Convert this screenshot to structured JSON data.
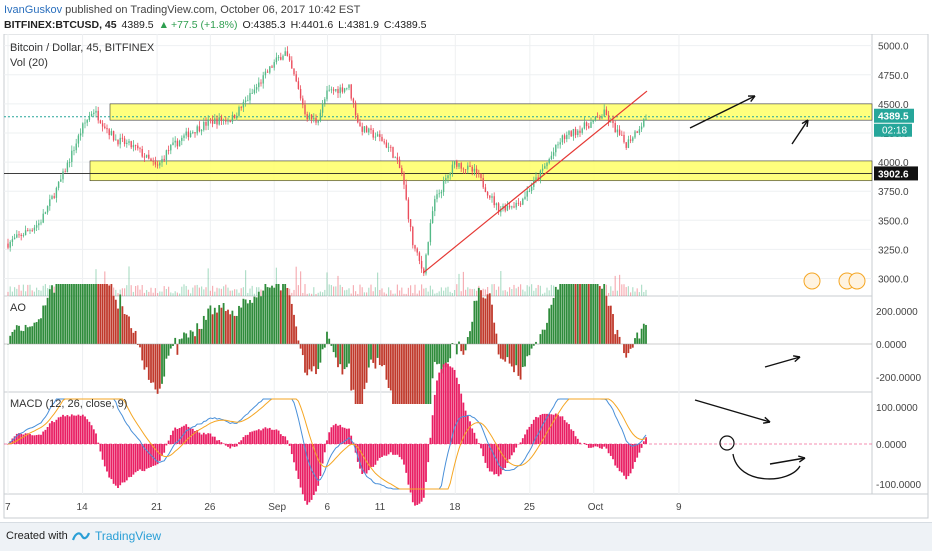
{
  "header": {
    "author": "IvanGuskov",
    "published_text": "published on TradingView.com, October 06, 2017 10:42 EST",
    "symbol": "BITFINEX:BTCUSD, 45",
    "last": "4389.5",
    "change": "+77.5 (+1.8%)",
    "open": "O:4385.3",
    "high": "H:4401.6",
    "low": "L:4381.9",
    "close": "C:4389.5"
  },
  "panels": {
    "main": {
      "title": "Bitcoin / Dollar, 45, BITFINEX",
      "vol": "Vol (20)"
    },
    "ao": {
      "title": "AO"
    },
    "macd": {
      "title": "MACD (12, 26, close, 9)"
    }
  },
  "price_scale": {
    "ticks": [
      "5000.0",
      "4750.0",
      "4500.0",
      "4250.0",
      "4000.0",
      "3750.0",
      "3500.0",
      "3250.0",
      "3000.0"
    ],
    "last_price": "4389.5",
    "countdown": "02:18",
    "crosshair_price": "3902.6"
  },
  "ao_scale": {
    "ticks": [
      "200.0000",
      "0.0000",
      "-200.0000"
    ]
  },
  "macd_scale": {
    "ticks": [
      "100.0000",
      "0.0000",
      "-100.0000"
    ]
  },
  "time_axis": {
    "labels": [
      "7",
      "14",
      "21",
      "26",
      "Sep",
      "6",
      "11",
      "18",
      "25",
      "Oct",
      "9"
    ]
  },
  "footer": {
    "created_with": "Created with",
    "brand": "TradingView"
  },
  "colors": {
    "up": "#53b987",
    "down": "#eb4d5c",
    "ao_up": "#2e8b3a",
    "ao_down": "#c0392b",
    "zone": "#ffff66",
    "trendline": "#e53935",
    "macd_line": "#4a90d9",
    "signal_line": "#f5a623",
    "hist": "#e91e63",
    "last_price_bg": "#26a69a"
  },
  "chart_data": {
    "type": "candlestick",
    "title": "Bitcoin / Dollar, 45, BITFINEX",
    "price_range": [
      2850,
      5100
    ],
    "last_price": 4389.5,
    "support_resistance_zones": [
      {
        "low": 4360,
        "high": 4500
      },
      {
        "low": 3840,
        "high": 4010
      }
    ],
    "trendline_points": [
      {
        "date": "Sep 15",
        "price": 3050
      },
      {
        "date": "Oct 6",
        "price": 4610
      }
    ],
    "price_path": [
      {
        "date": "Aug 7",
        "price": 3300
      },
      {
        "date": "Aug 10",
        "price": 3480
      },
      {
        "date": "Aug 12",
        "price": 3850
      },
      {
        "date": "Aug 14",
        "price": 4300
      },
      {
        "date": "Aug 15",
        "price": 4450
      },
      {
        "date": "Aug 17",
        "price": 4200
      },
      {
        "date": "Aug 19",
        "price": 4120
      },
      {
        "date": "Aug 21",
        "price": 3950
      },
      {
        "date": "Aug 22",
        "price": 4100
      },
      {
        "date": "Aug 24",
        "price": 4250
      },
      {
        "date": "Aug 26",
        "price": 4350
      },
      {
        "date": "Aug 28",
        "price": 4370
      },
      {
        "date": "Aug 30",
        "price": 4600
      },
      {
        "date": "Sep 1",
        "price": 4850
      },
      {
        "date": "Sep 2",
        "price": 4950
      },
      {
        "date": "Sep 3",
        "price": 4700
      },
      {
        "date": "Sep 4",
        "price": 4400
      },
      {
        "date": "Sep 5",
        "price": 4350
      },
      {
        "date": "Sep 6",
        "price": 4600
      },
      {
        "date": "Sep 8",
        "price": 4650
      },
      {
        "date": "Sep 9",
        "price": 4300
      },
      {
        "date": "Sep 11",
        "price": 4200
      },
      {
        "date": "Sep 12",
        "price": 4100
      },
      {
        "date": "Sep 13",
        "price": 3900
      },
      {
        "date": "Sep 14",
        "price": 3300
      },
      {
        "date": "Sep 15",
        "price": 3050
      },
      {
        "date": "Sep 16",
        "price": 3650
      },
      {
        "date": "Sep 18",
        "price": 4000
      },
      {
        "date": "Sep 20",
        "price": 3900
      },
      {
        "date": "Sep 22",
        "price": 3600
      },
      {
        "date": "Sep 24",
        "price": 3650
      },
      {
        "date": "Sep 26",
        "price": 3900
      },
      {
        "date": "Sep 28",
        "price": 4200
      },
      {
        "date": "Oct 1",
        "price": 4350
      },
      {
        "date": "Oct 2",
        "price": 4420
      },
      {
        "date": "Oct 4",
        "price": 4150
      },
      {
        "date": "Oct 6",
        "price": 4390
      }
    ]
  }
}
